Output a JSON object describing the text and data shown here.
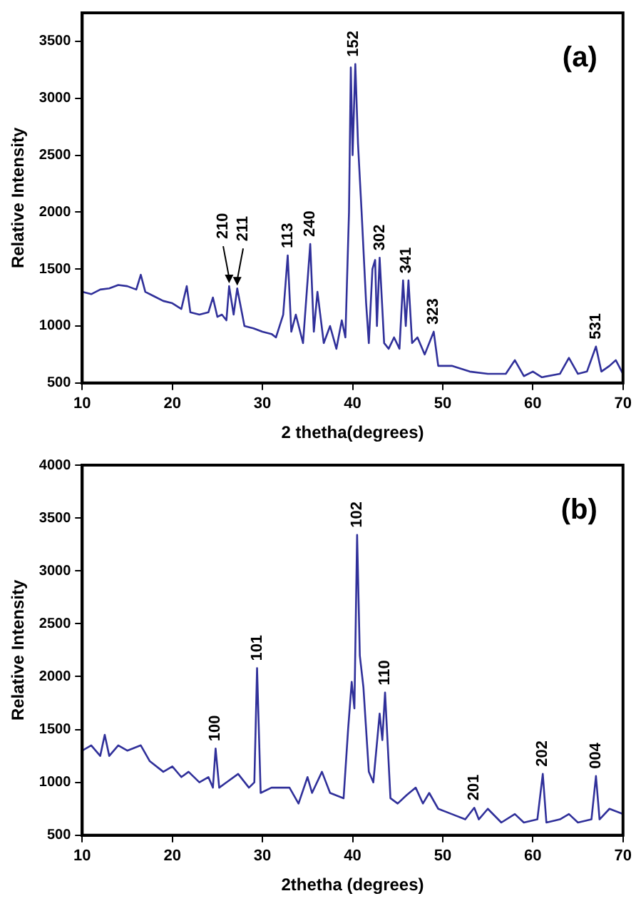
{
  "chart_data": [
    {
      "type": "line",
      "xlabel": "2 thetha(degrees)",
      "ylabel": "Relative Intensity",
      "xlim": [
        10,
        70
      ],
      "ylim": [
        500,
        3750
      ],
      "xticks": [
        10,
        20,
        30,
        40,
        50,
        60,
        70
      ],
      "yticks": [
        500,
        1000,
        1500,
        2000,
        2500,
        3000,
        3500
      ],
      "grid": false,
      "legend": false,
      "series": [
        {
          "color": "#30309a",
          "x": [
            10,
            11,
            12,
            13,
            14,
            15,
            16,
            16.5,
            17,
            18,
            19,
            20,
            21,
            21.6,
            22,
            23,
            24,
            24.5,
            25,
            25.5,
            26,
            26.3,
            26.8,
            27.2,
            28,
            29,
            30,
            31,
            31.5,
            32.3,
            32.8,
            33.2,
            33.7,
            34.5,
            35.3,
            35.7,
            36.1,
            36.8,
            37.5,
            38.2,
            38.8,
            39.2,
            39.6,
            39.8,
            40,
            40.3,
            40.6,
            41,
            41.5,
            41.8,
            42.2,
            42.5,
            42.7,
            43,
            43.5,
            44,
            44.6,
            45.2,
            45.6,
            45.9,
            46.2,
            46.6,
            47.2,
            48,
            49,
            49.5,
            51,
            53,
            55,
            57,
            58,
            59,
            60,
            61,
            63,
            64,
            65,
            66,
            67,
            67.6,
            68.5,
            69.2,
            70
          ],
          "values": [
            1300,
            1280,
            1320,
            1330,
            1360,
            1350,
            1320,
            1450,
            1300,
            1260,
            1220,
            1200,
            1150,
            1350,
            1120,
            1100,
            1120,
            1250,
            1080,
            1100,
            1050,
            1350,
            1100,
            1330,
            1000,
            980,
            950,
            930,
            900,
            1100,
            1620,
            950,
            1100,
            850,
            1720,
            950,
            1300,
            850,
            1000,
            800,
            1050,
            900,
            2000,
            3270,
            2500,
            3300,
            2600,
            2000,
            1200,
            850,
            1500,
            1580,
            1000,
            1600,
            850,
            800,
            900,
            800,
            1400,
            1000,
            1400,
            850,
            900,
            750,
            950,
            650,
            650,
            600,
            580,
            580,
            700,
            560,
            600,
            550,
            580,
            720,
            580,
            600,
            820,
            600,
            650,
            700,
            580
          ]
        }
      ],
      "annotations": [
        "(a)",
        {
          "text": "210",
          "x": 26.3,
          "y": 1350
        },
        {
          "text": "211",
          "x": 27.2,
          "y": 1330
        },
        {
          "text": "113",
          "x": 32.8,
          "y": 1620
        },
        {
          "text": "240",
          "x": 35.3,
          "y": 1720
        },
        {
          "text": "152",
          "x": 40.1,
          "y": 3300
        },
        {
          "text": "302",
          "x": 43,
          "y": 1600
        },
        {
          "text": "341",
          "x": 46,
          "y": 1400
        },
        {
          "text": "323",
          "x": 49,
          "y": 950
        },
        {
          "text": "531",
          "x": 67,
          "y": 820
        }
      ]
    },
    {
      "type": "line",
      "xlabel": "2thetha (degrees)",
      "ylabel": "Relative Intensity",
      "xlim": [
        10,
        70
      ],
      "ylim": [
        500,
        4000
      ],
      "xticks": [
        10,
        20,
        30,
        40,
        50,
        60,
        70
      ],
      "yticks": [
        500,
        1000,
        1500,
        2000,
        2500,
        3000,
        3500,
        4000
      ],
      "grid": false,
      "legend": false,
      "series": [
        {
          "color": "#30309a",
          "x": [
            10,
            11,
            12,
            12.5,
            13,
            14,
            15,
            16.5,
            17.5,
            19,
            20,
            21,
            21.8,
            23,
            24,
            24.5,
            24.8,
            25.2,
            26,
            27.3,
            28.5,
            29.1,
            29.4,
            29.8,
            31,
            33,
            34,
            35,
            35.5,
            36.6,
            37.5,
            39,
            39.5,
            39.9,
            40.2,
            40.5,
            40.8,
            41.2,
            41.8,
            42.3,
            43,
            43.3,
            43.6,
            44.2,
            45,
            46,
            47,
            47.8,
            48.5,
            49.5,
            51,
            52.5,
            53.5,
            54,
            55,
            56.5,
            58,
            59,
            60.5,
            61.1,
            61.5,
            63,
            64,
            65,
            66.5,
            67,
            67.4,
            68.5,
            70
          ],
          "values": [
            1300,
            1350,
            1250,
            1450,
            1250,
            1350,
            1300,
            1350,
            1200,
            1100,
            1150,
            1050,
            1100,
            1000,
            1050,
            950,
            1320,
            950,
            1000,
            1080,
            950,
            1000,
            2080,
            900,
            950,
            950,
            800,
            1050,
            900,
            1100,
            900,
            850,
            1500,
            1950,
            1700,
            3340,
            2200,
            1900,
            1100,
            1000,
            1650,
            1400,
            1850,
            850,
            800,
            880,
            950,
            800,
            900,
            750,
            700,
            650,
            760,
            650,
            750,
            620,
            700,
            620,
            650,
            1080,
            620,
            650,
            700,
            620,
            650,
            1060,
            650,
            750,
            700
          ]
        }
      ],
      "annotations": [
        "(b)",
        {
          "text": "100",
          "x": 24.8,
          "y": 1320
        },
        {
          "text": "101",
          "x": 29.4,
          "y": 2080
        },
        {
          "text": "102",
          "x": 40.5,
          "y": 3340
        },
        {
          "text": "110",
          "x": 43.6,
          "y": 1850
        },
        {
          "text": "201",
          "x": 53.5,
          "y": 760
        },
        {
          "text": "202",
          "x": 61.1,
          "y": 1080
        },
        {
          "text": "004",
          "x": 67,
          "y": 1060
        }
      ]
    }
  ]
}
